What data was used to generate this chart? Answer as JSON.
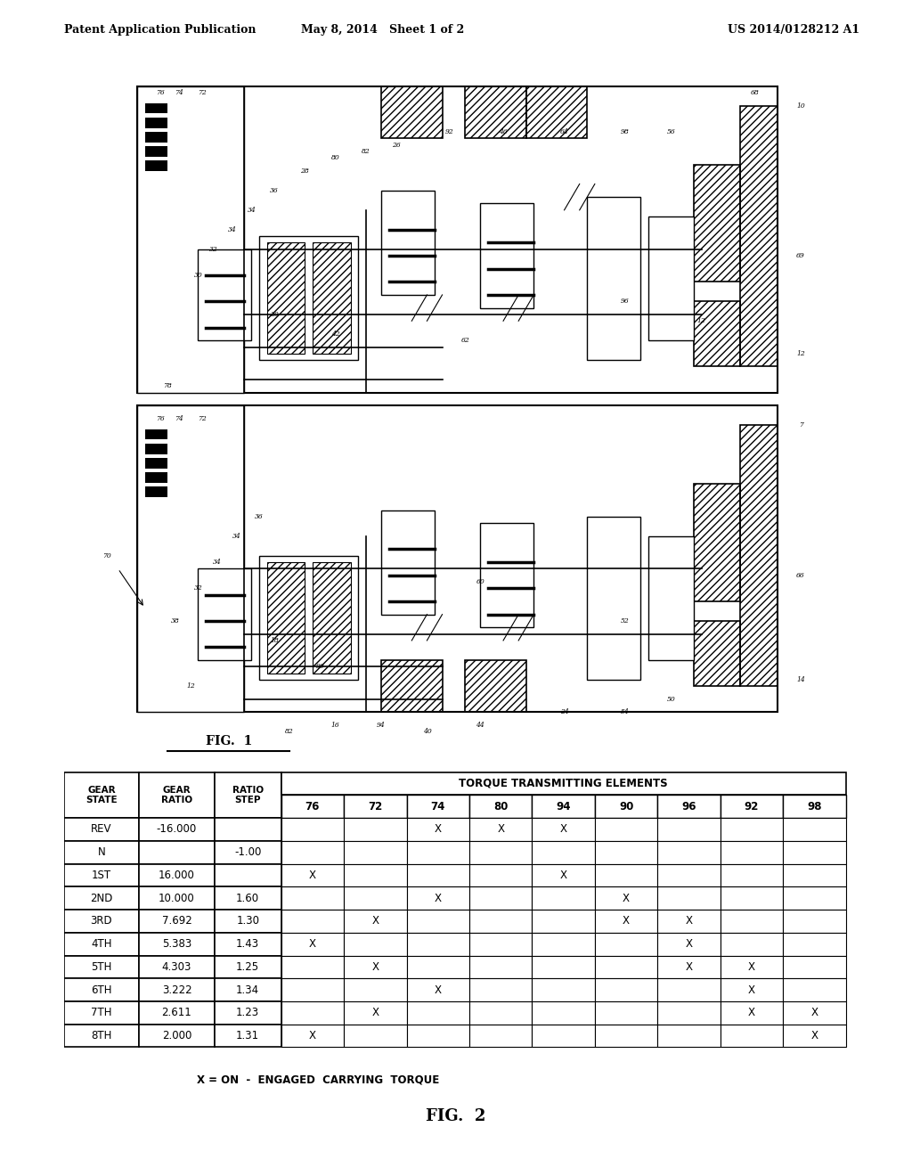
{
  "header_text_left": "Patent Application Publication",
  "header_text_mid": "May 8, 2014   Sheet 1 of 2",
  "header_text_right": "US 2014/0128212 A1",
  "fig1_label": "FIG.  1",
  "fig2_label": "FIG.  2",
  "table_note": "X = ON  -  ENGAGED  CARRYING  TORQUE",
  "sub_headers": [
    "76",
    "72",
    "74",
    "80",
    "94",
    "90",
    "96",
    "92",
    "98"
  ],
  "rows": [
    [
      "REV",
      "-16.000",
      "",
      "",
      "",
      "X",
      "X",
      "X",
      "",
      "",
      "",
      ""
    ],
    [
      "N",
      "",
      "-1.00",
      "",
      "",
      "",
      "",
      "",
      "",
      "",
      "",
      ""
    ],
    [
      "1ST",
      "16.000",
      "",
      "X",
      "",
      "",
      "",
      "X",
      "",
      "",
      "",
      ""
    ],
    [
      "2ND",
      "10.000",
      "1.60",
      "",
      "",
      "X",
      "",
      "",
      "X",
      "",
      "",
      ""
    ],
    [
      "3RD",
      "7.692",
      "1.30",
      "",
      "X",
      "",
      "",
      "",
      "X",
      "X",
      "",
      ""
    ],
    [
      "4TH",
      "5.383",
      "1.43",
      "X",
      "",
      "",
      "",
      "",
      "",
      "X",
      "",
      ""
    ],
    [
      "5TH",
      "4.303",
      "1.25",
      "",
      "X",
      "",
      "",
      "",
      "",
      "X",
      "X",
      ""
    ],
    [
      "6TH",
      "3.222",
      "1.34",
      "",
      "",
      "X",
      "",
      "",
      "",
      "",
      "X",
      ""
    ],
    [
      "7TH",
      "2.611",
      "1.23",
      "",
      "X",
      "",
      "",
      "",
      "",
      "",
      "X",
      "X"
    ],
    [
      "8TH",
      "2.000",
      "1.31",
      "X",
      "",
      "",
      "",
      "",
      "",
      "",
      "",
      "X"
    ]
  ],
  "background_color": "#ffffff",
  "line_color": "#000000",
  "text_color": "#000000"
}
